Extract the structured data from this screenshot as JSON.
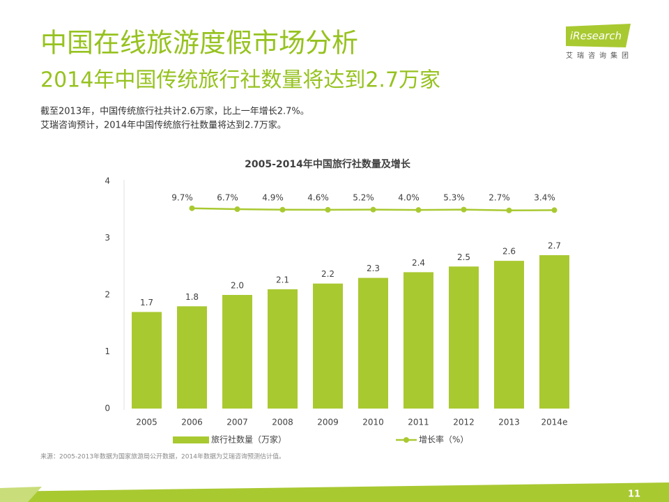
{
  "header": {
    "title": "中国在线旅游度假市场分析",
    "subtitle": "2014年中国传统旅行社数量将达到2.7万家",
    "logo": "iResearch",
    "logo_sub": "艾瑞咨询集团"
  },
  "body": [
    "截至2013年，中国传统旅行社共计2.6万家，比上一年增长2.7%。",
    "艾瑞咨询预计，2014年中国传统旅行社数量将达到2.7万家。"
  ],
  "chart_data": {
    "type": "bar",
    "title": "2005-2014年中国旅行社数量及增长",
    "categories": [
      "2005",
      "2006",
      "2007",
      "2008",
      "2009",
      "2010",
      "2011",
      "2012",
      "2013",
      "2014e"
    ],
    "series": [
      {
        "name": "旅行社数量（万家）",
        "type": "bar",
        "color": "#a9c931",
        "values": [
          1.7,
          1.8,
          2.0,
          2.1,
          2.2,
          2.3,
          2.4,
          2.5,
          2.6,
          2.7
        ],
        "value_labels": [
          "1.7",
          "1.8",
          "2.0",
          "2.1",
          "2.2",
          "2.3",
          "2.4",
          "2.5",
          "2.6",
          "2.7"
        ]
      },
      {
        "name": "增长率（%）",
        "type": "line",
        "axis": "y2",
        "color": "#a9c931",
        "values": [
          null,
          9.7,
          6.7,
          4.9,
          4.6,
          5.2,
          4.0,
          5.3,
          2.7,
          3.4
        ],
        "value_labels": [
          null,
          "9.7%",
          "6.7%",
          "4.9%",
          "4.6%",
          "5.2%",
          "4.0%",
          "5.3%",
          "2.7%",
          "3.4%"
        ]
      }
    ],
    "ylim": [
      0,
      4
    ],
    "yticks": [
      0,
      1,
      2,
      3,
      4
    ],
    "y2lim": [
      -660,
      100
    ],
    "grid": false,
    "source": "来源：2005-2013年数据为国家旅游局公开数据，2014年数据为艾瑞咨询预测估计值。"
  },
  "page_number": "11"
}
